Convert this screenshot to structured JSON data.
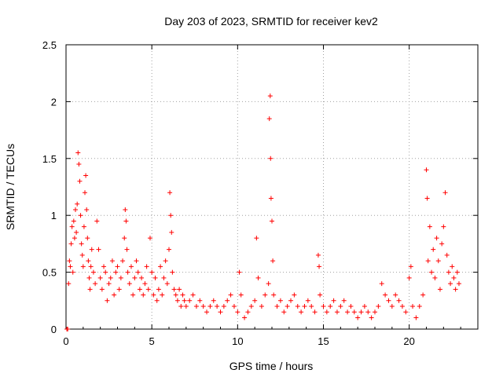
{
  "chart_data": {
    "type": "scatter",
    "title": "Day 203 of 2023, SRMTID for receiver kev2",
    "xlabel": "GPS time / hours",
    "ylabel": "SRMTID / TECUs",
    "xlim": [
      0,
      24
    ],
    "ylim": [
      0,
      2.5
    ],
    "xticks": [
      0,
      5,
      10,
      15,
      20
    ],
    "xtick_labels": [
      "0",
      "5",
      "10",
      "15",
      "20"
    ],
    "yticks": [
      0,
      0.5,
      1,
      1.5,
      2,
      2.5
    ],
    "ytick_labels": [
      "0",
      "0.5",
      "1",
      "1.5",
      "2",
      "2.5"
    ],
    "grid": true,
    "marker": "+",
    "series": [
      {
        "name": "SRMTID",
        "color": "#ff0000",
        "points": [
          [
            0.05,
            0.0
          ],
          [
            0.1,
            0.0
          ],
          [
            0.15,
            0.4
          ],
          [
            0.2,
            0.6
          ],
          [
            0.25,
            0.55
          ],
          [
            0.3,
            0.75
          ],
          [
            0.35,
            0.9
          ],
          [
            0.4,
            0.5
          ],
          [
            0.45,
            0.95
          ],
          [
            0.5,
            0.8
          ],
          [
            0.55,
            1.05
          ],
          [
            0.6,
            0.85
          ],
          [
            0.65,
            1.1
          ],
          [
            0.7,
            1.55
          ],
          [
            0.75,
            1.45
          ],
          [
            0.8,
            1.3
          ],
          [
            0.85,
            1.0
          ],
          [
            0.9,
            0.75
          ],
          [
            0.95,
            0.65
          ],
          [
            1.0,
            0.55
          ],
          [
            1.05,
            0.9
          ],
          [
            1.1,
            1.2
          ],
          [
            1.15,
            1.35
          ],
          [
            1.2,
            1.05
          ],
          [
            1.25,
            0.8
          ],
          [
            1.3,
            0.6
          ],
          [
            1.35,
            0.45
          ],
          [
            1.4,
            0.35
          ],
          [
            1.45,
            0.55
          ],
          [
            1.5,
            0.7
          ],
          [
            1.6,
            0.5
          ],
          [
            1.7,
            0.4
          ],
          [
            1.8,
            0.95
          ],
          [
            1.9,
            0.7
          ],
          [
            2.0,
            0.45
          ],
          [
            2.1,
            0.35
          ],
          [
            2.2,
            0.55
          ],
          [
            2.3,
            0.5
          ],
          [
            2.4,
            0.25
          ],
          [
            2.5,
            0.4
          ],
          [
            2.6,
            0.45
          ],
          [
            2.7,
            0.6
          ],
          [
            2.8,
            0.3
          ],
          [
            2.9,
            0.5
          ],
          [
            3.0,
            0.55
          ],
          [
            3.1,
            0.35
          ],
          [
            3.2,
            0.45
          ],
          [
            3.3,
            0.6
          ],
          [
            3.4,
            0.8
          ],
          [
            3.45,
            1.05
          ],
          [
            3.5,
            0.95
          ],
          [
            3.55,
            0.7
          ],
          [
            3.6,
            0.5
          ],
          [
            3.7,
            0.4
          ],
          [
            3.8,
            0.55
          ],
          [
            3.9,
            0.3
          ],
          [
            4.0,
            0.45
          ],
          [
            4.1,
            0.6
          ],
          [
            4.2,
            0.5
          ],
          [
            4.3,
            0.35
          ],
          [
            4.4,
            0.45
          ],
          [
            4.5,
            0.3
          ],
          [
            4.6,
            0.4
          ],
          [
            4.7,
            0.55
          ],
          [
            4.8,
            0.35
          ],
          [
            4.9,
            0.8
          ],
          [
            5.0,
            0.5
          ],
          [
            5.1,
            0.3
          ],
          [
            5.2,
            0.45
          ],
          [
            5.3,
            0.25
          ],
          [
            5.4,
            0.35
          ],
          [
            5.5,
            0.55
          ],
          [
            5.6,
            0.3
          ],
          [
            5.7,
            0.45
          ],
          [
            5.8,
            0.6
          ],
          [
            5.9,
            0.4
          ],
          [
            6.0,
            0.7
          ],
          [
            6.05,
            1.2
          ],
          [
            6.1,
            1.0
          ],
          [
            6.15,
            0.85
          ],
          [
            6.2,
            0.5
          ],
          [
            6.3,
            0.35
          ],
          [
            6.4,
            0.3
          ],
          [
            6.5,
            0.25
          ],
          [
            6.6,
            0.35
          ],
          [
            6.7,
            0.2
          ],
          [
            6.8,
            0.3
          ],
          [
            6.9,
            0.25
          ],
          [
            7.0,
            0.2
          ],
          [
            7.2,
            0.25
          ],
          [
            7.4,
            0.3
          ],
          [
            7.6,
            0.2
          ],
          [
            7.8,
            0.25
          ],
          [
            8.0,
            0.2
          ],
          [
            8.2,
            0.15
          ],
          [
            8.4,
            0.2
          ],
          [
            8.6,
            0.25
          ],
          [
            8.8,
            0.2
          ],
          [
            9.0,
            0.15
          ],
          [
            9.2,
            0.2
          ],
          [
            9.4,
            0.25
          ],
          [
            9.6,
            0.3
          ],
          [
            9.8,
            0.2
          ],
          [
            10.0,
            0.15
          ],
          [
            10.1,
            0.5
          ],
          [
            10.2,
            0.3
          ],
          [
            10.4,
            0.1
          ],
          [
            10.6,
            0.15
          ],
          [
            10.8,
            0.2
          ],
          [
            11.0,
            0.25
          ],
          [
            11.1,
            0.8
          ],
          [
            11.2,
            0.45
          ],
          [
            11.4,
            0.2
          ],
          [
            11.6,
            0.3
          ],
          [
            11.8,
            0.4
          ],
          [
            11.85,
            1.85
          ],
          [
            11.9,
            2.05
          ],
          [
            11.92,
            1.5
          ],
          [
            11.95,
            1.15
          ],
          [
            12.0,
            0.95
          ],
          [
            12.05,
            0.6
          ],
          [
            12.1,
            0.3
          ],
          [
            12.3,
            0.2
          ],
          [
            12.5,
            0.25
          ],
          [
            12.7,
            0.15
          ],
          [
            12.9,
            0.2
          ],
          [
            13.1,
            0.25
          ],
          [
            13.3,
            0.3
          ],
          [
            13.5,
            0.2
          ],
          [
            13.7,
            0.15
          ],
          [
            13.9,
            0.2
          ],
          [
            14.1,
            0.25
          ],
          [
            14.3,
            0.2
          ],
          [
            14.5,
            0.15
          ],
          [
            14.7,
            0.65
          ],
          [
            14.75,
            0.55
          ],
          [
            14.8,
            0.3
          ],
          [
            15.0,
            0.2
          ],
          [
            15.2,
            0.15
          ],
          [
            15.4,
            0.2
          ],
          [
            15.6,
            0.25
          ],
          [
            15.8,
            0.15
          ],
          [
            16.0,
            0.2
          ],
          [
            16.2,
            0.25
          ],
          [
            16.4,
            0.15
          ],
          [
            16.6,
            0.2
          ],
          [
            16.8,
            0.15
          ],
          [
            17.0,
            0.1
          ],
          [
            17.2,
            0.15
          ],
          [
            17.4,
            0.2
          ],
          [
            17.6,
            0.15
          ],
          [
            17.8,
            0.1
          ],
          [
            18.0,
            0.15
          ],
          [
            18.2,
            0.2
          ],
          [
            18.4,
            0.4
          ],
          [
            18.6,
            0.3
          ],
          [
            18.8,
            0.25
          ],
          [
            19.0,
            0.2
          ],
          [
            19.2,
            0.3
          ],
          [
            19.4,
            0.25
          ],
          [
            19.6,
            0.2
          ],
          [
            19.8,
            0.15
          ],
          [
            20.0,
            0.45
          ],
          [
            20.1,
            0.55
          ],
          [
            20.2,
            0.2
          ],
          [
            20.4,
            0.1
          ],
          [
            20.6,
            0.2
          ],
          [
            20.8,
            0.3
          ],
          [
            21.0,
            1.4
          ],
          [
            21.05,
            1.15
          ],
          [
            21.1,
            0.6
          ],
          [
            21.2,
            0.9
          ],
          [
            21.3,
            0.5
          ],
          [
            21.4,
            0.7
          ],
          [
            21.5,
            0.45
          ],
          [
            21.6,
            0.8
          ],
          [
            21.7,
            0.6
          ],
          [
            21.8,
            0.35
          ],
          [
            21.9,
            0.75
          ],
          [
            22.0,
            0.9
          ],
          [
            22.1,
            1.2
          ],
          [
            22.2,
            0.65
          ],
          [
            22.3,
            0.5
          ],
          [
            22.4,
            0.4
          ],
          [
            22.5,
            0.55
          ],
          [
            22.6,
            0.45
          ],
          [
            22.7,
            0.35
          ],
          [
            22.8,
            0.5
          ],
          [
            22.9,
            0.4
          ]
        ]
      }
    ]
  }
}
